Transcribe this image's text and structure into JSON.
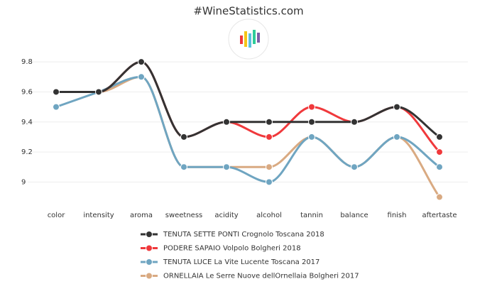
{
  "chart_data": {
    "type": "line",
    "title": "#WineStatistics.com",
    "categories": [
      "color",
      "intensity",
      "aroma",
      "sweetness",
      "acidity",
      "alcohol",
      "tannin",
      "balance",
      "finish",
      "aftertaste"
    ],
    "series": [
      {
        "name": "TENUTA SETTE PONTI Crognolo Toscana 2018",
        "color": "#333333",
        "values": [
          9.6,
          9.6,
          9.8,
          9.3,
          9.4,
          9.4,
          9.4,
          9.4,
          9.5,
          9.3
        ]
      },
      {
        "name": "PODERE SAPAIO Volpolo Bolgheri 2018",
        "color": "#f0393c",
        "values": [
          9.6,
          9.6,
          9.8,
          9.3,
          9.4,
          9.3,
          9.5,
          9.4,
          9.5,
          9.2
        ]
      },
      {
        "name": "TENUTA LUCE La Vite Lucente Toscana 2017",
        "color": "#6fa5c1",
        "values": [
          9.5,
          9.6,
          9.7,
          9.1,
          9.1,
          9.0,
          9.3,
          9.1,
          9.3,
          9.1
        ]
      },
      {
        "name": "ORNELLAIA Le Serre Nuove dellOrnellaia Bolgheri 2017",
        "color": "#d9aa82",
        "values": [
          9.6,
          9.6,
          9.7,
          9.1,
          9.1,
          9.1,
          9.3,
          9.1,
          9.3,
          8.9
        ]
      }
    ],
    "ylim": [
      8.86,
      9.9
    ],
    "yticks": [
      9,
      9.2,
      9.4,
      9.6,
      9.8
    ],
    "grid": true
  }
}
